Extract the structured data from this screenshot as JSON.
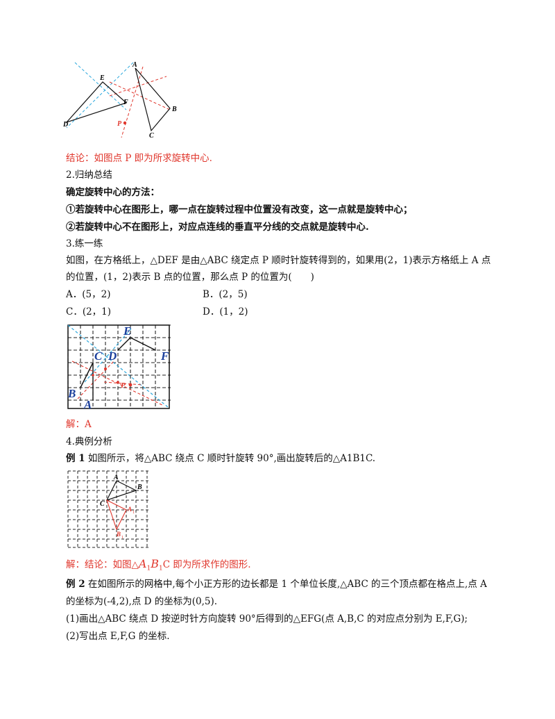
{
  "figure1": {
    "labels": {
      "A": "A",
      "B": "B",
      "C": "C",
      "D": "D",
      "E": "E",
      "F": "F",
      "P": "P"
    }
  },
  "conclusion1": "结论：如图点 P 即为所求旋转中心.",
  "section2": {
    "heading": "2.归纳总结",
    "method_title": "确定旋转中心的方法：",
    "rule1": "①若旋转中心在图形上，哪一点在旋转过程中位置没有改变，这一点就是旋转中心；",
    "rule2": "②若旋转中心不在图形上，对应点连线的垂直平分线的交点就是旋转中心."
  },
  "section3": {
    "heading": "3.练一练",
    "question_line1": "如图，在方格纸上，△DEF 是由△ABC 绕定点 P 顺时针旋转得到的，如果用(2，1)表示方格纸上 A 点",
    "question_line2": "的位置，(1，2)表示 B 点的位置，那么点 P 的位置为(　　)",
    "options": {
      "A": "A．(5，2)",
      "B": "B．(2，5)",
      "C": "C．(2，1)",
      "D": "D．(1，2)"
    },
    "answer": "解：A"
  },
  "figure2": {
    "labels": {
      "A": "A",
      "B": "B",
      "C": "C",
      "D": "D",
      "E": "E",
      "F": "F",
      "P": "P"
    }
  },
  "section4": {
    "heading": "4.典例分析",
    "ex1_label": "例 1",
    "ex1_text": " 如图所示，将△ABC 绕点 C 顺时针旋转 90°,画出旋转后的△A1B1C.",
    "ex1_answer_prefix": "解：结论：如图△",
    "ex1_answer_A": "A",
    "ex1_answer_B": "B",
    "ex1_answer_sub": "1",
    "ex1_answer_suffix": "C 即为所求作的图形.",
    "ex2_label": "例 2",
    "ex2_line1": " 在如图所示的网格中,每个小正方形的边长都是 1 个单位长度,△ABC 的三个顶点都在格点上,点 A",
    "ex2_line2": "的坐标为(-4,2),点 D 的坐标为(0,5).",
    "ex2_q1": "(1)画出△ABC 绕点 D 按逆时针方向旋转 90°后得到的△EFG(点 A,B,C 的对应点分别为 E,F,G);",
    "ex2_q2": "(2)写出点 E,F,G 的坐标."
  },
  "figure3": {
    "labels": {
      "A": "A",
      "B": "B",
      "C": "C",
      "A1": "A",
      "B1": "B",
      "sub1": "1"
    }
  },
  "colors": {
    "red": "#e0352b",
    "cyan": "#2aa7dc",
    "blue": "#2b6fd6"
  }
}
